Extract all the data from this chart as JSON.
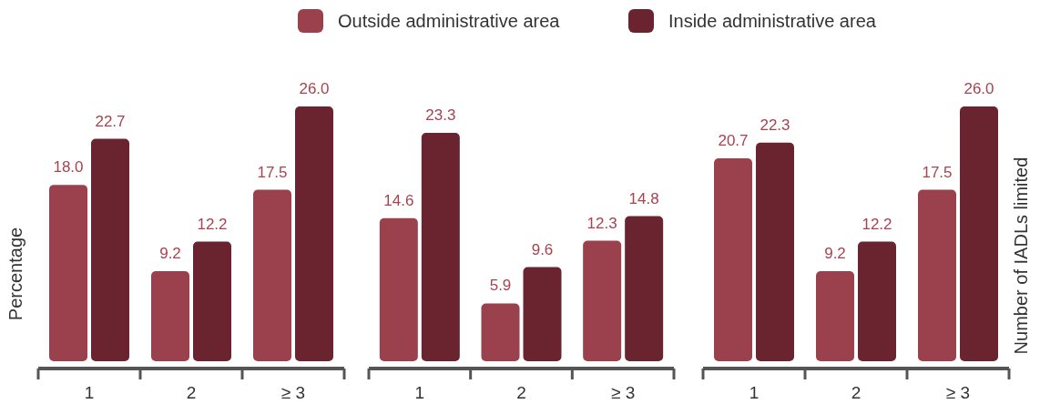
{
  "chart_data": [
    {
      "type": "bar",
      "categories": [
        "1",
        "2",
        "≥ 3"
      ],
      "ylabel": "Percentage",
      "legend": "top",
      "series": [
        {
          "name": "Outside administrative area",
          "color": "#9b414d",
          "values": [
            18.0,
            9.2,
            17.5
          ],
          "value_labels": [
            "18.0",
            "9.2",
            "17.5"
          ]
        },
        {
          "name": "Inside administrative area",
          "color": "#6a2430",
          "values": [
            22.7,
            12.2,
            26.0
          ],
          "value_labels": [
            "22.7",
            "12.2",
            "26.0"
          ]
        }
      ]
    },
    {
      "type": "bar",
      "categories": [
        "1",
        "2",
        "≥ 3"
      ],
      "series": [
        {
          "color": "#9b414d",
          "values": [
            14.6,
            5.9,
            12.3
          ],
          "value_labels": [
            "14.6",
            "5.9",
            "12.3"
          ]
        },
        {
          "color": "#6a2430",
          "values": [
            23.3,
            9.6,
            14.8
          ],
          "value_labels": [
            "23.3",
            "9.6",
            "14.8"
          ]
        }
      ]
    },
    {
      "type": "bar",
      "categories": [
        "1",
        "2",
        "≥ 3"
      ],
      "y2label": "Number of IADLs limited",
      "series": [
        {
          "color": "#9b414d",
          "values": [
            20.7,
            9.2,
            17.5
          ],
          "value_labels": [
            "20.7",
            "9.2",
            "17.5"
          ]
        },
        {
          "color": "#6a2430",
          "values": [
            22.3,
            12.2,
            26.0
          ],
          "value_labels": [
            "22.3",
            "12.2",
            "26.0"
          ]
        }
      ]
    }
  ]
}
